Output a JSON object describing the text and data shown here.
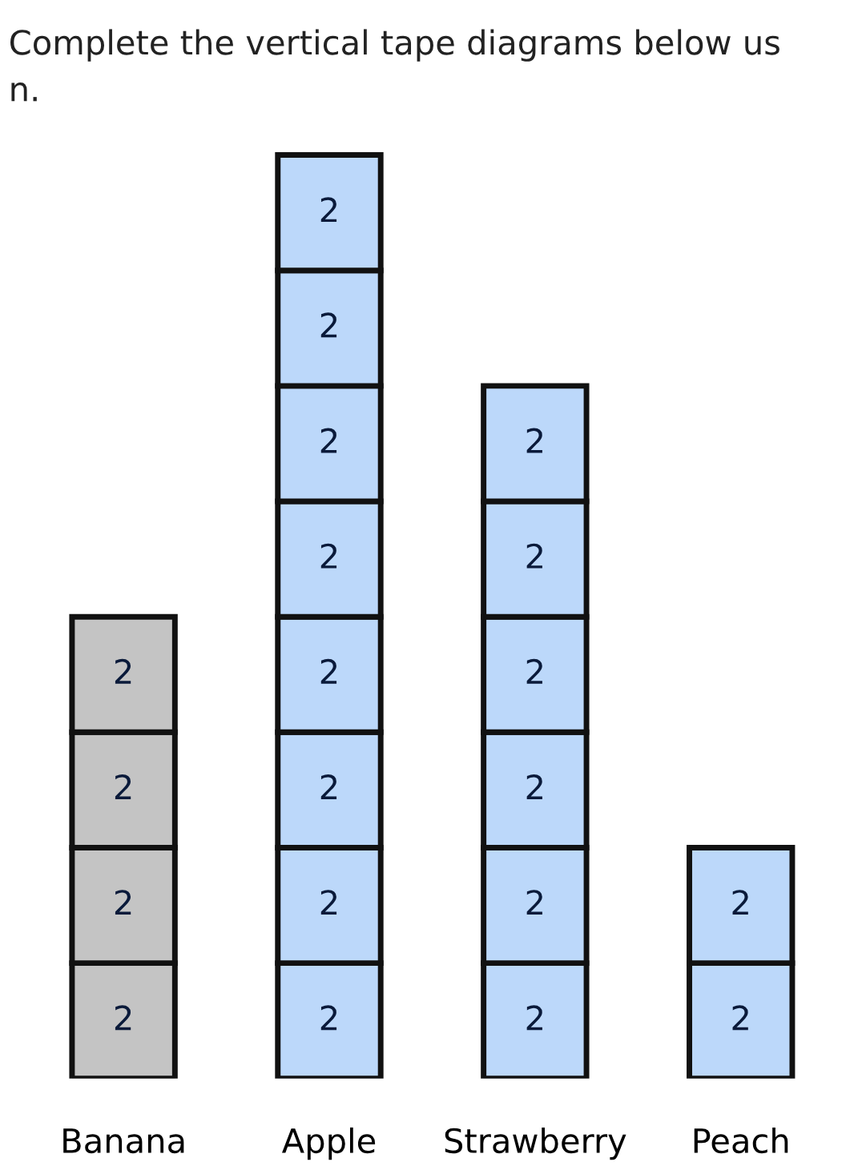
{
  "chart_data": {
    "type": "bar",
    "stacked": true,
    "data_labels": true,
    "categories": [
      "Banana",
      "Apple",
      "Strawberry",
      "Peach"
    ],
    "annotations": [
      "Complete the vertical tape diagrams below us",
      "n."
    ],
    "series": [
      {
        "colors": [
          "#c4c4c4",
          "#bcd8fa",
          "#bcd8fa",
          "#bcd8fa"
        ],
        "values": [
          2,
          2,
          2,
          2
        ]
      },
      {
        "colors": [
          "#c4c4c4",
          "#bcd8fa",
          "#bcd8fa",
          "#bcd8fa"
        ],
        "values": [
          2,
          2,
          2,
          2
        ]
      },
      {
        "colors": [
          "#c4c4c4",
          "#bcd8fa",
          "#bcd8fa",
          "#bcd8fa"
        ],
        "values": [
          2,
          2,
          2,
          null
        ]
      },
      {
        "colors": [
          "#c4c4c4",
          "#bcd8fa",
          "#bcd8fa",
          "#bcd8fa"
        ],
        "values": [
          2,
          2,
          2,
          null
        ]
      },
      {
        "colors": [
          "#c4c4c4",
          "#bcd8fa",
          "#bcd8fa",
          "#bcd8fa"
        ],
        "values": [
          null,
          2,
          2,
          null
        ]
      },
      {
        "colors": [
          "#c4c4c4",
          "#bcd8fa",
          "#bcd8fa",
          "#bcd8fa"
        ],
        "values": [
          null,
          2,
          2,
          null
        ]
      },
      {
        "colors": [
          "#c4c4c4",
          "#bcd8fa",
          "#bcd8fa",
          "#bcd8fa"
        ],
        "values": [
          null,
          2,
          null,
          null
        ]
      },
      {
        "colors": [
          "#c4c4c4",
          "#bcd8fa",
          "#bcd8fa",
          "#bcd8fa"
        ],
        "values": [
          null,
          2,
          null,
          null
        ]
      }
    ]
  }
}
